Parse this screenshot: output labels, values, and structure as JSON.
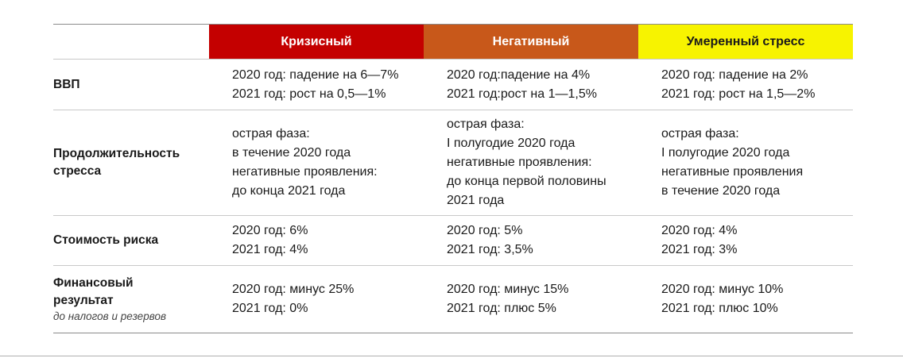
{
  "columns": [
    "Кризисный",
    "Негативный",
    "Умеренный стресс"
  ],
  "colors": {
    "crisis": "#c40000",
    "negative": "#c8581a",
    "moderate": "#f7f300"
  },
  "rows": [
    {
      "label": "ВВП",
      "cells": [
        [
          "2020 год: падение на 6—7%",
          "2021 год: рост на 0,5—1%"
        ],
        [
          "2020 год:падение на 4%",
          "2021 год:рост на 1—1,5%"
        ],
        [
          "2020 год: падение на 2%",
          "2021 год: рост на 1,5—2%"
        ]
      ]
    },
    {
      "label_lines": [
        "Продолжительность",
        "стресса"
      ],
      "cells": [
        [
          "острая фаза:",
          "в течение 2020 года",
          "негативные проявления:",
          "до конца 2021 года"
        ],
        [
          "острая фаза:",
          "I полугодие 2020 года",
          "негативные проявления:",
          "до конца первой половины",
          "2021 года"
        ],
        [
          "острая фаза:",
          "I полугодие 2020 года",
          "негативные проявления",
          "в течение 2020 года"
        ]
      ]
    },
    {
      "label": "Стоимость риска",
      "cells": [
        [
          "2020 год: 6%",
          "2021 год: 4%"
        ],
        [
          "2020 год: 5%",
          "2021 год: 3,5%"
        ],
        [
          "2020 год: 4%",
          "2021 год: 3%"
        ]
      ]
    },
    {
      "label_lines": [
        "Финансовый",
        "результат"
      ],
      "sublabel": "до налогов и резервов",
      "cells": [
        [
          "2020 год: минус 25%",
          "2021 год: 0%"
        ],
        [
          "2020 год: минус 15%",
          "2021 год: плюс 5%"
        ],
        [
          "2020 год: минус 10%",
          "2021 год: плюс 10%"
        ]
      ]
    }
  ]
}
